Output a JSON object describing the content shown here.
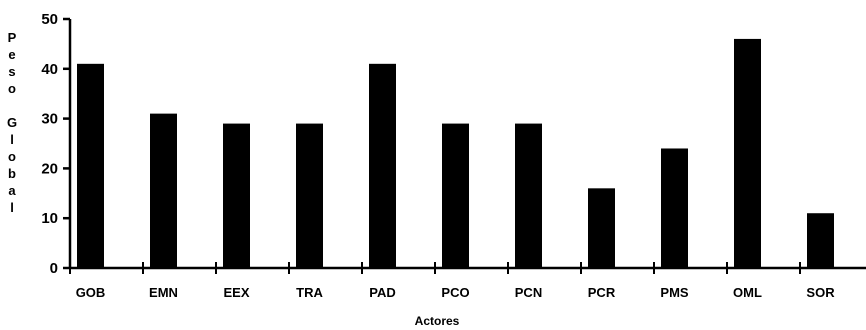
{
  "chart_data": {
    "type": "bar",
    "categories": [
      "GOB",
      "EMN",
      "EEX",
      "TRA",
      "PAD",
      "PCO",
      "PCN",
      "PCR",
      "PMS",
      "OML",
      "SOR"
    ],
    "values": [
      41,
      31,
      29,
      29,
      41,
      29,
      29,
      16,
      24,
      46,
      11
    ],
    "xlabel": "Actores",
    "ylabel": "Peso Global",
    "ylim": [
      0,
      50
    ],
    "yticks": [
      0,
      10,
      20,
      30,
      40,
      50
    ],
    "grid": false,
    "legend": "none",
    "bar_color": "#000000"
  }
}
